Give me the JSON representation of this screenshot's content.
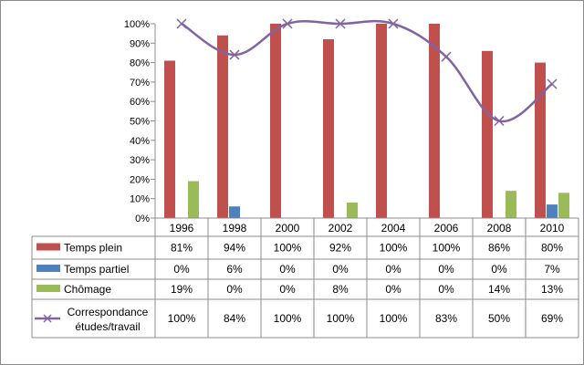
{
  "chart_data": {
    "type": "bar",
    "categories": [
      "1996",
      "1998",
      "2000",
      "2002",
      "2004",
      "2006",
      "2008",
      "2010"
    ],
    "ylim": [
      0,
      100
    ],
    "yticks": [
      0,
      10,
      20,
      30,
      40,
      50,
      60,
      70,
      80,
      90,
      100
    ],
    "ytick_labels": [
      "0%",
      "10%",
      "20%",
      "30%",
      "40%",
      "50%",
      "60%",
      "70%",
      "80%",
      "90%",
      "100%"
    ],
    "grid": false,
    "legend": "data-table",
    "series": [
      {
        "name": "Temps plein",
        "type": "bar",
        "color": "#c0504d",
        "values": [
          81,
          94,
          100,
          92,
          100,
          100,
          86,
          80
        ],
        "labels": [
          "81%",
          "94%",
          "100%",
          "92%",
          "100%",
          "100%",
          "86%",
          "80%"
        ]
      },
      {
        "name": "Temps partiel",
        "type": "bar",
        "color": "#4f81bd",
        "values": [
          0,
          6,
          0,
          0,
          0,
          0,
          0,
          7
        ],
        "labels": [
          "0%",
          "6%",
          "0%",
          "0%",
          "0%",
          "0%",
          "0%",
          "7%"
        ]
      },
      {
        "name": "Chômage",
        "type": "bar",
        "color": "#9bbb59",
        "values": [
          19,
          0,
          0,
          8,
          0,
          0,
          14,
          13
        ],
        "labels": [
          "19%",
          "0%",
          "0%",
          "8%",
          "0%",
          "0%",
          "14%",
          "13%"
        ]
      },
      {
        "name": "Correspondance études/travail",
        "name_lines": [
          "Correspondance",
          "études/travail"
        ],
        "type": "line",
        "color": "#8064a2",
        "values": [
          100,
          84,
          100,
          100,
          100,
          83,
          50,
          69
        ],
        "labels": [
          "100%",
          "84%",
          "100%",
          "100%",
          "100%",
          "83%",
          "50%",
          "69%"
        ]
      }
    ]
  }
}
